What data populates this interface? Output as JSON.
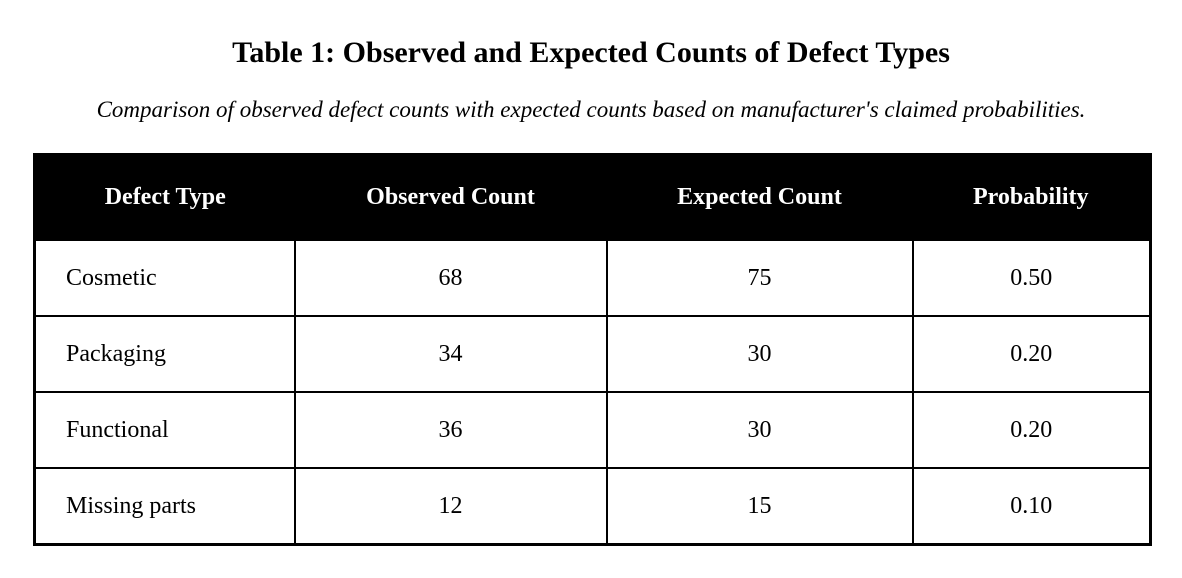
{
  "header": {
    "title": "Table 1: Observed and Expected Counts of Defect Types",
    "subtitle": "Comparison of observed defect counts with expected counts based on manufacturer's claimed probabilities."
  },
  "table": {
    "columns": [
      "Defect Type",
      "Observed Count",
      "Expected Count",
      "Probability"
    ],
    "rows": [
      [
        "Cosmetic",
        "68",
        "75",
        "0.50"
      ],
      [
        "Packaging",
        "34",
        "30",
        "0.20"
      ],
      [
        "Functional",
        "36",
        "30",
        "0.20"
      ],
      [
        "Missing parts",
        "12",
        "15",
        "0.10"
      ]
    ]
  }
}
